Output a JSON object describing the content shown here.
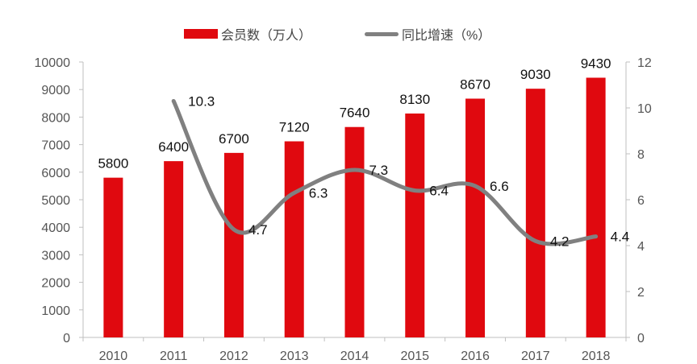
{
  "chart_data": {
    "type": "bar+line",
    "categories": [
      "2010",
      "2011",
      "2012",
      "2013",
      "2014",
      "2015",
      "2016",
      "2017",
      "2018"
    ],
    "series": [
      {
        "name": "会员数（万人）",
        "type": "bar",
        "axis": "left",
        "color": "#e0090f",
        "values": [
          5800,
          6400,
          6700,
          7120,
          7640,
          8130,
          8670,
          9030,
          9430
        ]
      },
      {
        "name": "同比增速（%）",
        "type": "line",
        "axis": "right",
        "color": "#808080",
        "smooth": true,
        "values": [
          null,
          10.3,
          4.7,
          6.3,
          7.3,
          6.4,
          6.6,
          4.2,
          4.4
        ]
      }
    ],
    "left_axis": {
      "range": [
        0,
        10000
      ],
      "ticks": [
        "0",
        "1000",
        "2000",
        "3000",
        "4000",
        "5000",
        "6000",
        "7000",
        "8000",
        "9000",
        "10000"
      ]
    },
    "right_axis": {
      "range": [
        0,
        12
      ],
      "ticks": [
        "0",
        "2",
        "4",
        "6",
        "8",
        "10",
        "12"
      ]
    },
    "grid": false,
    "legend_position": "top"
  }
}
